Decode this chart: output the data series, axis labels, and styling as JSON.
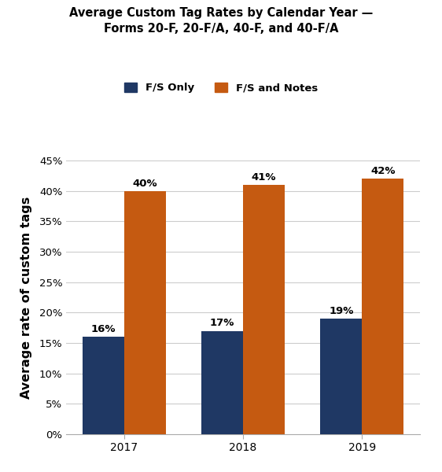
{
  "title_line1": "Average Custom Tag Rates by Calendar Year —",
  "title_line2": "Forms 20-F, 20-F/A, 40-F, and 40-F/A",
  "title_fontsize": 10.5,
  "ylabel": "Average rate of custom tags",
  "ylabel_fontsize": 11.5,
  "years": [
    "2017",
    "2018",
    "2019"
  ],
  "fs_only_values": [
    0.16,
    0.17,
    0.19
  ],
  "fs_notes_values": [
    0.4,
    0.41,
    0.42
  ],
  "fs_only_labels": [
    "16%",
    "17%",
    "19%"
  ],
  "fs_notes_labels": [
    "40%",
    "41%",
    "42%"
  ],
  "color_blue": "#1F3864",
  "color_orange": "#C55A11",
  "bar_width": 0.35,
  "ylim": [
    0,
    0.45
  ],
  "yticks": [
    0.0,
    0.05,
    0.1,
    0.15,
    0.2,
    0.25,
    0.3,
    0.35,
    0.4,
    0.45
  ],
  "ytick_labels": [
    "0%",
    "5%",
    "10%",
    "15%",
    "20%",
    "25%",
    "30%",
    "35%",
    "40%",
    "45%"
  ],
  "legend_labels": [
    "F/S Only",
    "F/S and Notes"
  ],
  "background_color": "#ffffff",
  "grid_color": "#cccccc",
  "annotation_fontsize": 9.5
}
